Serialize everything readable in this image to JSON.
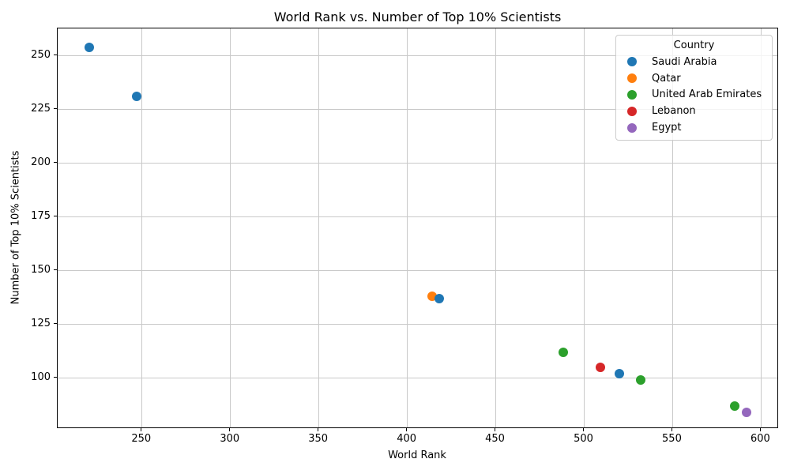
{
  "chart_data": {
    "type": "scatter",
    "title": "World Rank vs. Number of Top 10% Scientists",
    "xlabel": "World Rank",
    "ylabel": "Number of Top 10% Scientists",
    "legend_title": "Country",
    "legend_position": "upper right",
    "grid": true,
    "xlim": [
      202.3,
      610.1
    ],
    "ylim": [
      76.4,
      262.7
    ],
    "xticks": [
      250,
      300,
      350,
      400,
      450,
      500,
      550,
      600
    ],
    "yticks": [
      100,
      125,
      150,
      175,
      200,
      225,
      250
    ],
    "series": [
      {
        "name": "Saudi Arabia",
        "color": "#1f77b4",
        "points": [
          [
            220,
            254
          ],
          [
            247,
            231
          ],
          [
            418,
            137
          ],
          [
            520,
            102
          ]
        ]
      },
      {
        "name": "Qatar",
        "color": "#ff7f0e",
        "points": [
          [
            414,
            138
          ]
        ]
      },
      {
        "name": "United Arab Emirates",
        "color": "#2ca02c",
        "points": [
          [
            488,
            112
          ],
          [
            532,
            99
          ],
          [
            585,
            87
          ]
        ]
      },
      {
        "name": "Lebanon",
        "color": "#d62728",
        "points": [
          [
            509,
            105
          ]
        ]
      },
      {
        "name": "Egypt",
        "color": "#9467bd",
        "points": [
          [
            592,
            84
          ]
        ]
      }
    ],
    "style": {
      "marker_diameter_px": 12,
      "grid_color": "#c9c9c9",
      "spine_color": "#000000",
      "text_color": "#000000",
      "legend_border_color": "#cccccc"
    }
  }
}
